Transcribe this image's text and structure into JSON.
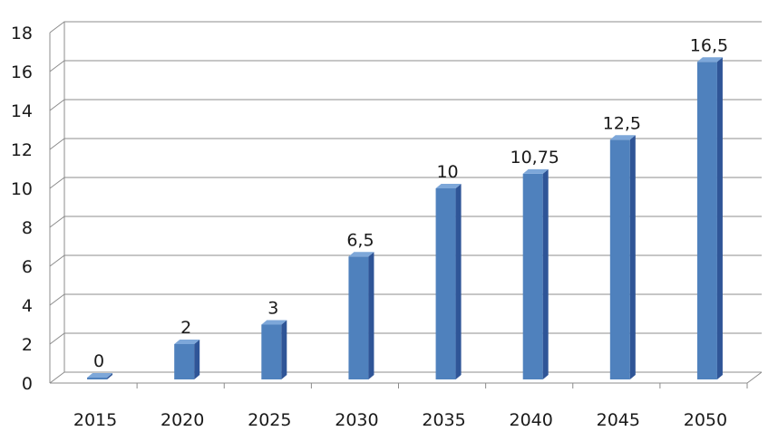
{
  "chart_data": {
    "type": "bar",
    "categories": [
      "2015",
      "2020",
      "2025",
      "2030",
      "2035",
      "2040",
      "2045",
      "2050"
    ],
    "values": [
      0,
      2,
      3,
      6.5,
      10,
      10.75,
      12.5,
      16.5
    ],
    "data_labels": [
      "0",
      "2",
      "3",
      "6,5",
      "10",
      "10,75",
      "12,5",
      "16,5"
    ],
    "y_ticks": [
      "0",
      "2",
      "4",
      "6",
      "8",
      "10",
      "12",
      "14",
      "16",
      "18"
    ],
    "ylim": [
      0,
      18
    ],
    "grid": true,
    "legend": "none",
    "bar_color": "#4f81bd",
    "bar_side_color": "#2f5597",
    "bar_top_color": "#7da7d9"
  }
}
